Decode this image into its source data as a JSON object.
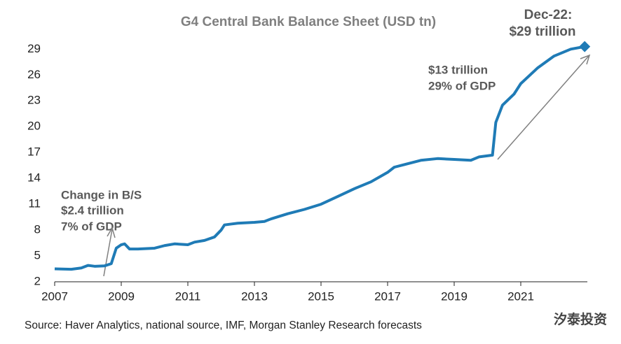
{
  "chart_data": {
    "type": "line",
    "title": "G4 Central Bank Balance Sheet (USD tn)",
    "annotations": [
      "Dec-22:",
      "$29 trillion",
      "Change in B/S",
      "$2.4 trillion",
      "7% of GDP",
      "$13 trillion",
      "29% of GDP"
    ],
    "source": "Source: Haver Analytics, national source, IMF, Morgan Stanley Research forecasts",
    "watermark": "汐泰投资",
    "x": [
      2007.0,
      2007.5,
      2007.8,
      2008.0,
      2008.2,
      2008.5,
      2008.7,
      2008.85,
      2009.0,
      2009.1,
      2009.25,
      2009.5,
      2010.0,
      2010.3,
      2010.6,
      2011.0,
      2011.2,
      2011.5,
      2011.8,
      2012.0,
      2012.1,
      2012.3,
      2012.5,
      2013.0,
      2013.3,
      2013.5,
      2014.0,
      2014.5,
      2015.0,
      2015.5,
      2016.0,
      2016.5,
      2017.0,
      2017.2,
      2017.5,
      2018.0,
      2018.5,
      2019.0,
      2019.5,
      2019.75,
      2020.15,
      2020.25,
      2020.45,
      2020.8,
      2021.0,
      2021.5,
      2022.0,
      2022.5,
      2022.92
    ],
    "series": [
      {
        "color": "#1f7bb6",
        "values": [
          3.5,
          3.45,
          3.6,
          3.9,
          3.8,
          3.85,
          4.1,
          5.9,
          6.3,
          6.4,
          5.8,
          5.8,
          5.9,
          6.2,
          6.4,
          6.3,
          6.6,
          6.8,
          7.2,
          8.0,
          8.6,
          8.7,
          8.8,
          8.9,
          9.0,
          9.3,
          9.9,
          10.4,
          11.0,
          11.9,
          12.8,
          13.6,
          14.7,
          15.3,
          15.6,
          16.1,
          16.3,
          16.2,
          16.1,
          16.5,
          16.7,
          20.5,
          22.5,
          23.8,
          25.0,
          26.8,
          28.2,
          29.0,
          29.3
        ]
      }
    ],
    "xlim": [
      2007,
      2023
    ],
    "xticks": [
      2007,
      2009,
      2011,
      2013,
      2015,
      2017,
      2019,
      2021
    ],
    "ylim": [
      2,
      30
    ],
    "yticks": [
      2,
      5,
      8,
      11,
      14,
      17,
      20,
      23,
      26,
      29
    ]
  }
}
